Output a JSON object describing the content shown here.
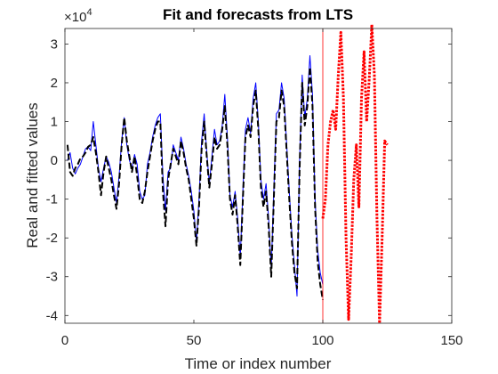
{
  "chart_data": {
    "type": "line",
    "title": "Fit and forecasts from LTS",
    "xlabel": "Time or index number",
    "ylabel": "Real and fitted values",
    "xlim": [
      0,
      150
    ],
    "ylim": [
      -4.2,
      3.4
    ],
    "y_exponent_label": "×10",
    "y_exponent_power": "4",
    "x_ticks": [
      0,
      50,
      100,
      150
    ],
    "y_ticks": [
      -4,
      -3,
      -2,
      -1,
      0,
      1,
      2,
      3
    ],
    "grid": false,
    "legend": "none",
    "vertical_line_x": 100,
    "colors": {
      "fitted": "#0000ff",
      "real": "#000000",
      "forecast": "#ff0000",
      "vline": "#ff0000",
      "axis": "#262626"
    },
    "series": [
      {
        "style": "solid",
        "color": "#0000ff",
        "x": [
          1,
          2,
          3,
          4,
          5,
          6,
          7,
          8,
          9,
          10,
          11,
          12,
          13,
          14,
          15,
          16,
          17,
          18,
          19,
          20,
          21,
          22,
          23,
          24,
          25,
          26,
          27,
          28,
          29,
          30,
          31,
          32,
          33,
          34,
          35,
          36,
          37,
          38,
          39,
          40,
          41,
          42,
          43,
          44,
          45,
          46,
          47,
          48,
          49,
          50,
          51,
          52,
          53,
          54,
          55,
          56,
          57,
          58,
          59,
          60,
          61,
          62,
          63,
          64,
          65,
          66,
          67,
          68,
          69,
          70,
          71,
          72,
          73,
          74,
          75,
          76,
          77,
          78,
          79,
          80,
          81,
          82,
          83,
          84,
          85,
          86,
          87,
          88,
          89,
          90,
          91,
          92,
          93,
          94,
          95,
          96,
          97,
          98,
          99,
          100
        ],
        "y": [
          0.0,
          0.2,
          -0.2,
          -0.35,
          -0.2,
          -0.1,
          0.1,
          0.3,
          0.35,
          0.25,
          1.0,
          0.4,
          -0.2,
          -0.55,
          -0.2,
          0.1,
          -0.05,
          -0.3,
          -0.7,
          -1.1,
          -0.4,
          0.5,
          1.1,
          0.4,
          0.0,
          -0.2,
          0.15,
          -0.1,
          -0.8,
          -1.0,
          -0.9,
          -0.1,
          0.2,
          0.6,
          0.9,
          1.1,
          1.2,
          -0.4,
          -1.3,
          -0.3,
          -0.2,
          0.4,
          0.2,
          0.0,
          0.6,
          0.3,
          -0.1,
          -0.4,
          -0.8,
          -1.3,
          -2.1,
          -1.0,
          0.5,
          1.2,
          0.2,
          -0.6,
          0.1,
          0.8,
          0.4,
          0.5,
          0.9,
          1.7,
          0.6,
          -0.9,
          -1.2,
          -0.8,
          -1.5,
          -2.5,
          -0.8,
          0.8,
          1.1,
          0.7,
          1.6,
          2.0,
          1.0,
          -0.5,
          -1.0,
          -0.6,
          -1.5,
          -2.8,
          -0.8,
          1.2,
          1.3,
          2.0,
          1.6,
          0.4,
          -0.8,
          -1.9,
          -2.7,
          -3.5,
          0.0,
          2.2,
          1.1,
          1.6,
          2.7,
          1.7,
          -1.0,
          -2.3,
          -2.9,
          -3.2
        ]
      },
      {
        "style": "dashed",
        "color": "#000000",
        "x": [
          1,
          2,
          3,
          4,
          5,
          6,
          7,
          8,
          9,
          10,
          11,
          12,
          13,
          14,
          15,
          16,
          17,
          18,
          19,
          20,
          21,
          22,
          23,
          24,
          25,
          26,
          27,
          28,
          29,
          30,
          31,
          32,
          33,
          34,
          35,
          36,
          37,
          38,
          39,
          40,
          41,
          42,
          43,
          44,
          45,
          46,
          47,
          48,
          49,
          50,
          51,
          52,
          53,
          54,
          55,
          56,
          57,
          58,
          59,
          60,
          61,
          62,
          63,
          64,
          65,
          66,
          67,
          68,
          69,
          70,
          71,
          72,
          73,
          74,
          75,
          76,
          77,
          78,
          79,
          80,
          81,
          82,
          83,
          84,
          85,
          86,
          87,
          88,
          89,
          90,
          91,
          92,
          93,
          94,
          95,
          96,
          97,
          98,
          99,
          100
        ],
        "y": [
          0.4,
          -0.3,
          -0.4,
          -0.2,
          -0.1,
          0.05,
          0.1,
          0.2,
          0.35,
          0.4,
          0.6,
          0.2,
          -0.3,
          -0.9,
          -0.3,
          0.1,
          -0.2,
          -0.5,
          -0.9,
          -1.25,
          -0.6,
          0.4,
          1.1,
          0.5,
          0.1,
          -0.3,
          0.1,
          -0.4,
          -1.0,
          -1.1,
          -0.8,
          -0.3,
          0.1,
          0.5,
          0.8,
          1.0,
          1.0,
          -0.8,
          -1.7,
          -0.5,
          -0.1,
          0.3,
          0.1,
          -0.1,
          0.5,
          0.2,
          -0.2,
          -0.5,
          -1.0,
          -1.5,
          -2.2,
          -1.2,
          0.3,
          1.0,
          0.1,
          -0.7,
          -0.1,
          0.6,
          0.3,
          0.4,
          0.8,
          1.4,
          0.4,
          -1.0,
          -1.4,
          -0.9,
          -1.7,
          -2.7,
          -1.0,
          0.6,
          0.9,
          0.6,
          1.4,
          1.8,
          0.8,
          -0.7,
          -1.2,
          -0.8,
          -1.7,
          -3.0,
          -1.0,
          1.0,
          1.1,
          1.8,
          1.4,
          0.2,
          -1.0,
          -2.1,
          -2.9,
          -3.3,
          -0.2,
          2.0,
          0.9,
          1.4,
          2.4,
          1.4,
          -1.2,
          -2.6,
          -3.2,
          -3.6
        ]
      },
      {
        "style": "dotted",
        "color": "#ff0000",
        "x": [
          100,
          101,
          102,
          103,
          104,
          105,
          106,
          107,
          108,
          109,
          110,
          111,
          112,
          113,
          114,
          115,
          116,
          117,
          118,
          119,
          120,
          121,
          122,
          123,
          124,
          125
        ],
        "y": [
          -1.5,
          -1.0,
          0.4,
          1.0,
          1.3,
          0.8,
          2.2,
          3.3,
          1.6,
          -2.0,
          -4.1,
          -2.5,
          -0.5,
          0.4,
          -1.2,
          1.6,
          2.8,
          1.0,
          2.1,
          3.5,
          2.2,
          -1.5,
          -4.2,
          -2.0,
          0.5,
          0.4
        ]
      }
    ]
  }
}
